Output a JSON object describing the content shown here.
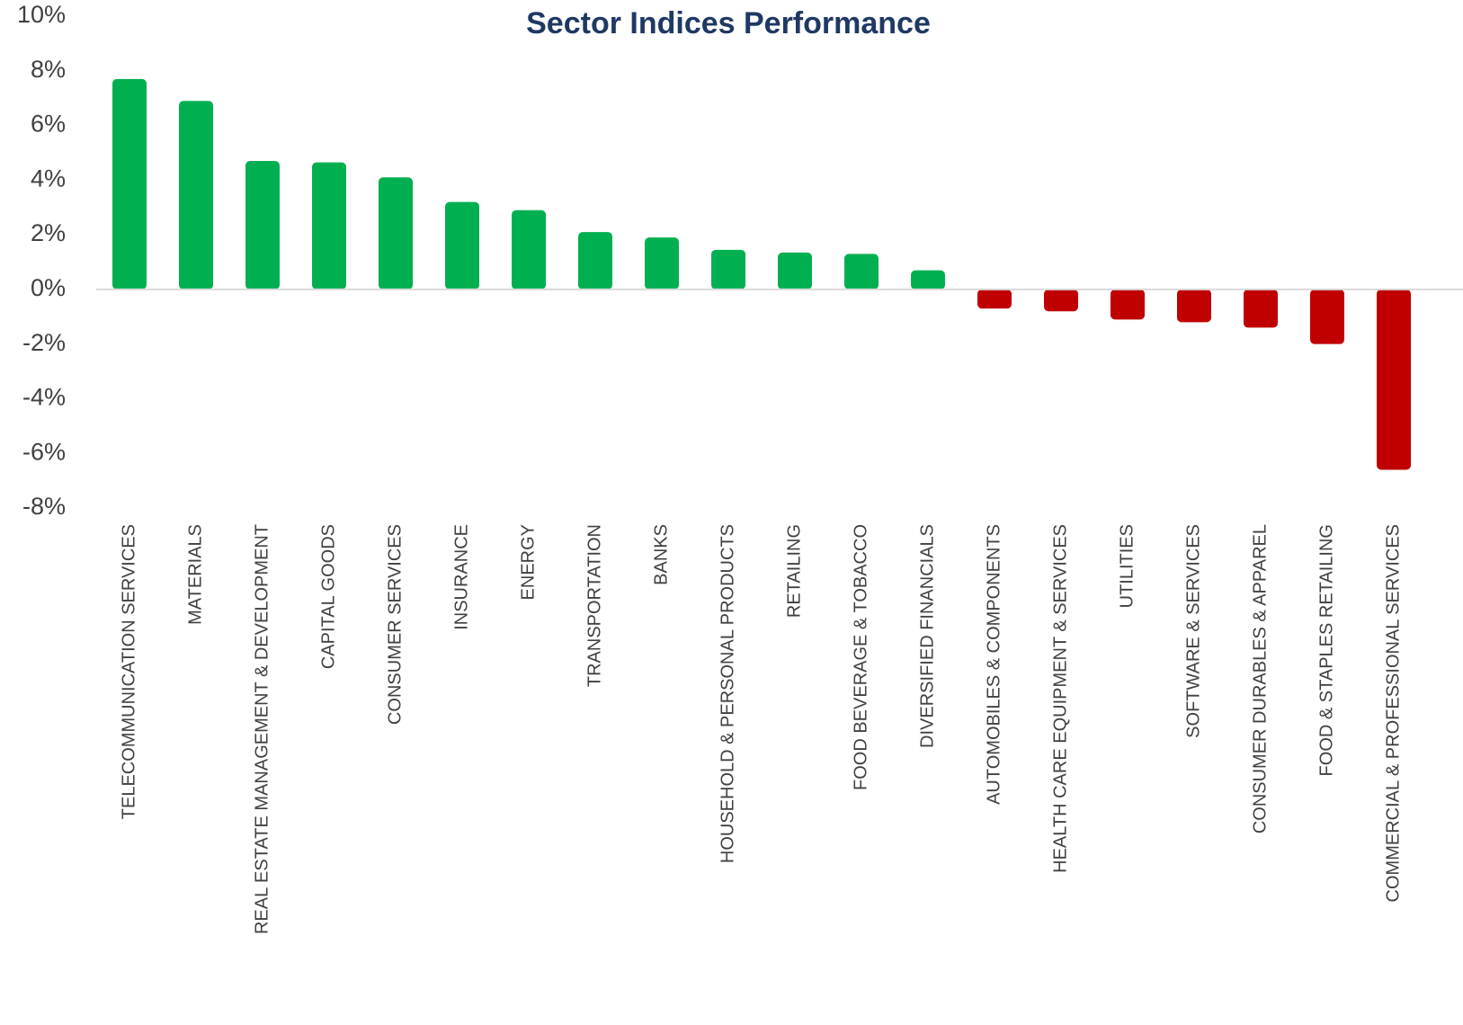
{
  "chart_data": {
    "type": "bar",
    "title": "Sector Indices Performance",
    "categories": [
      "TELECOMMUNICATION SERVICES",
      "MATERIALS",
      "REAL ESTATE MANAGEMENT & DEVELOPMENT",
      "CAPITAL GOODS",
      "CONSUMER SERVICES",
      "INSURANCE",
      "ENERGY",
      "TRANSPORTATION",
      "BANKS",
      "HOUSEHOLD & PERSONAL PRODUCTS",
      "RETAILING",
      "FOOD BEVERAGE & TOBACCO",
      "DIVERSIFIED FINANCIALS",
      "AUTOMOBILES & COMPONENTS",
      "HEALTH CARE EQUIPMENT & SERVICES",
      "UTILITIES",
      "SOFTWARE & SERVICES",
      "CONSUMER DURABLES & APPAREL",
      "FOOD & STAPLES RETAILING",
      "COMMERCIAL  & PROFESSIONAL SERVICES"
    ],
    "values": [
      7.7,
      6.9,
      4.7,
      4.65,
      4.1,
      3.2,
      2.9,
      2.1,
      1.9,
      1.45,
      1.35,
      1.3,
      0.7,
      -0.7,
      -0.8,
      -1.1,
      -1.2,
      -1.4,
      -2.0,
      -6.6
    ],
    "colors": [
      "#00b050",
      "#00b050",
      "#00b050",
      "#00b050",
      "#00b050",
      "#00b050",
      "#00b050",
      "#00b050",
      "#00b050",
      "#00b050",
      "#00b050",
      "#00b050",
      "#00b050",
      "#c00000",
      "#c00000",
      "#c00000",
      "#c00000",
      "#c00000",
      "#c00000",
      "#c00000"
    ],
    "ylim": [
      -8,
      10
    ],
    "yticks": [
      {
        "value": -8,
        "label": "-8%"
      },
      {
        "value": -6,
        "label": "-6%"
      },
      {
        "value": -4,
        "label": "-4%"
      },
      {
        "value": -2,
        "label": "-2%"
      },
      {
        "value": 0,
        "label": "0%"
      },
      {
        "value": 2,
        "label": "2%"
      },
      {
        "value": 4,
        "label": "4%"
      },
      {
        "value": 6,
        "label": "6%"
      },
      {
        "value": 8,
        "label": "8%"
      },
      {
        "value": 10,
        "label": "10%"
      }
    ],
    "grid": false
  }
}
